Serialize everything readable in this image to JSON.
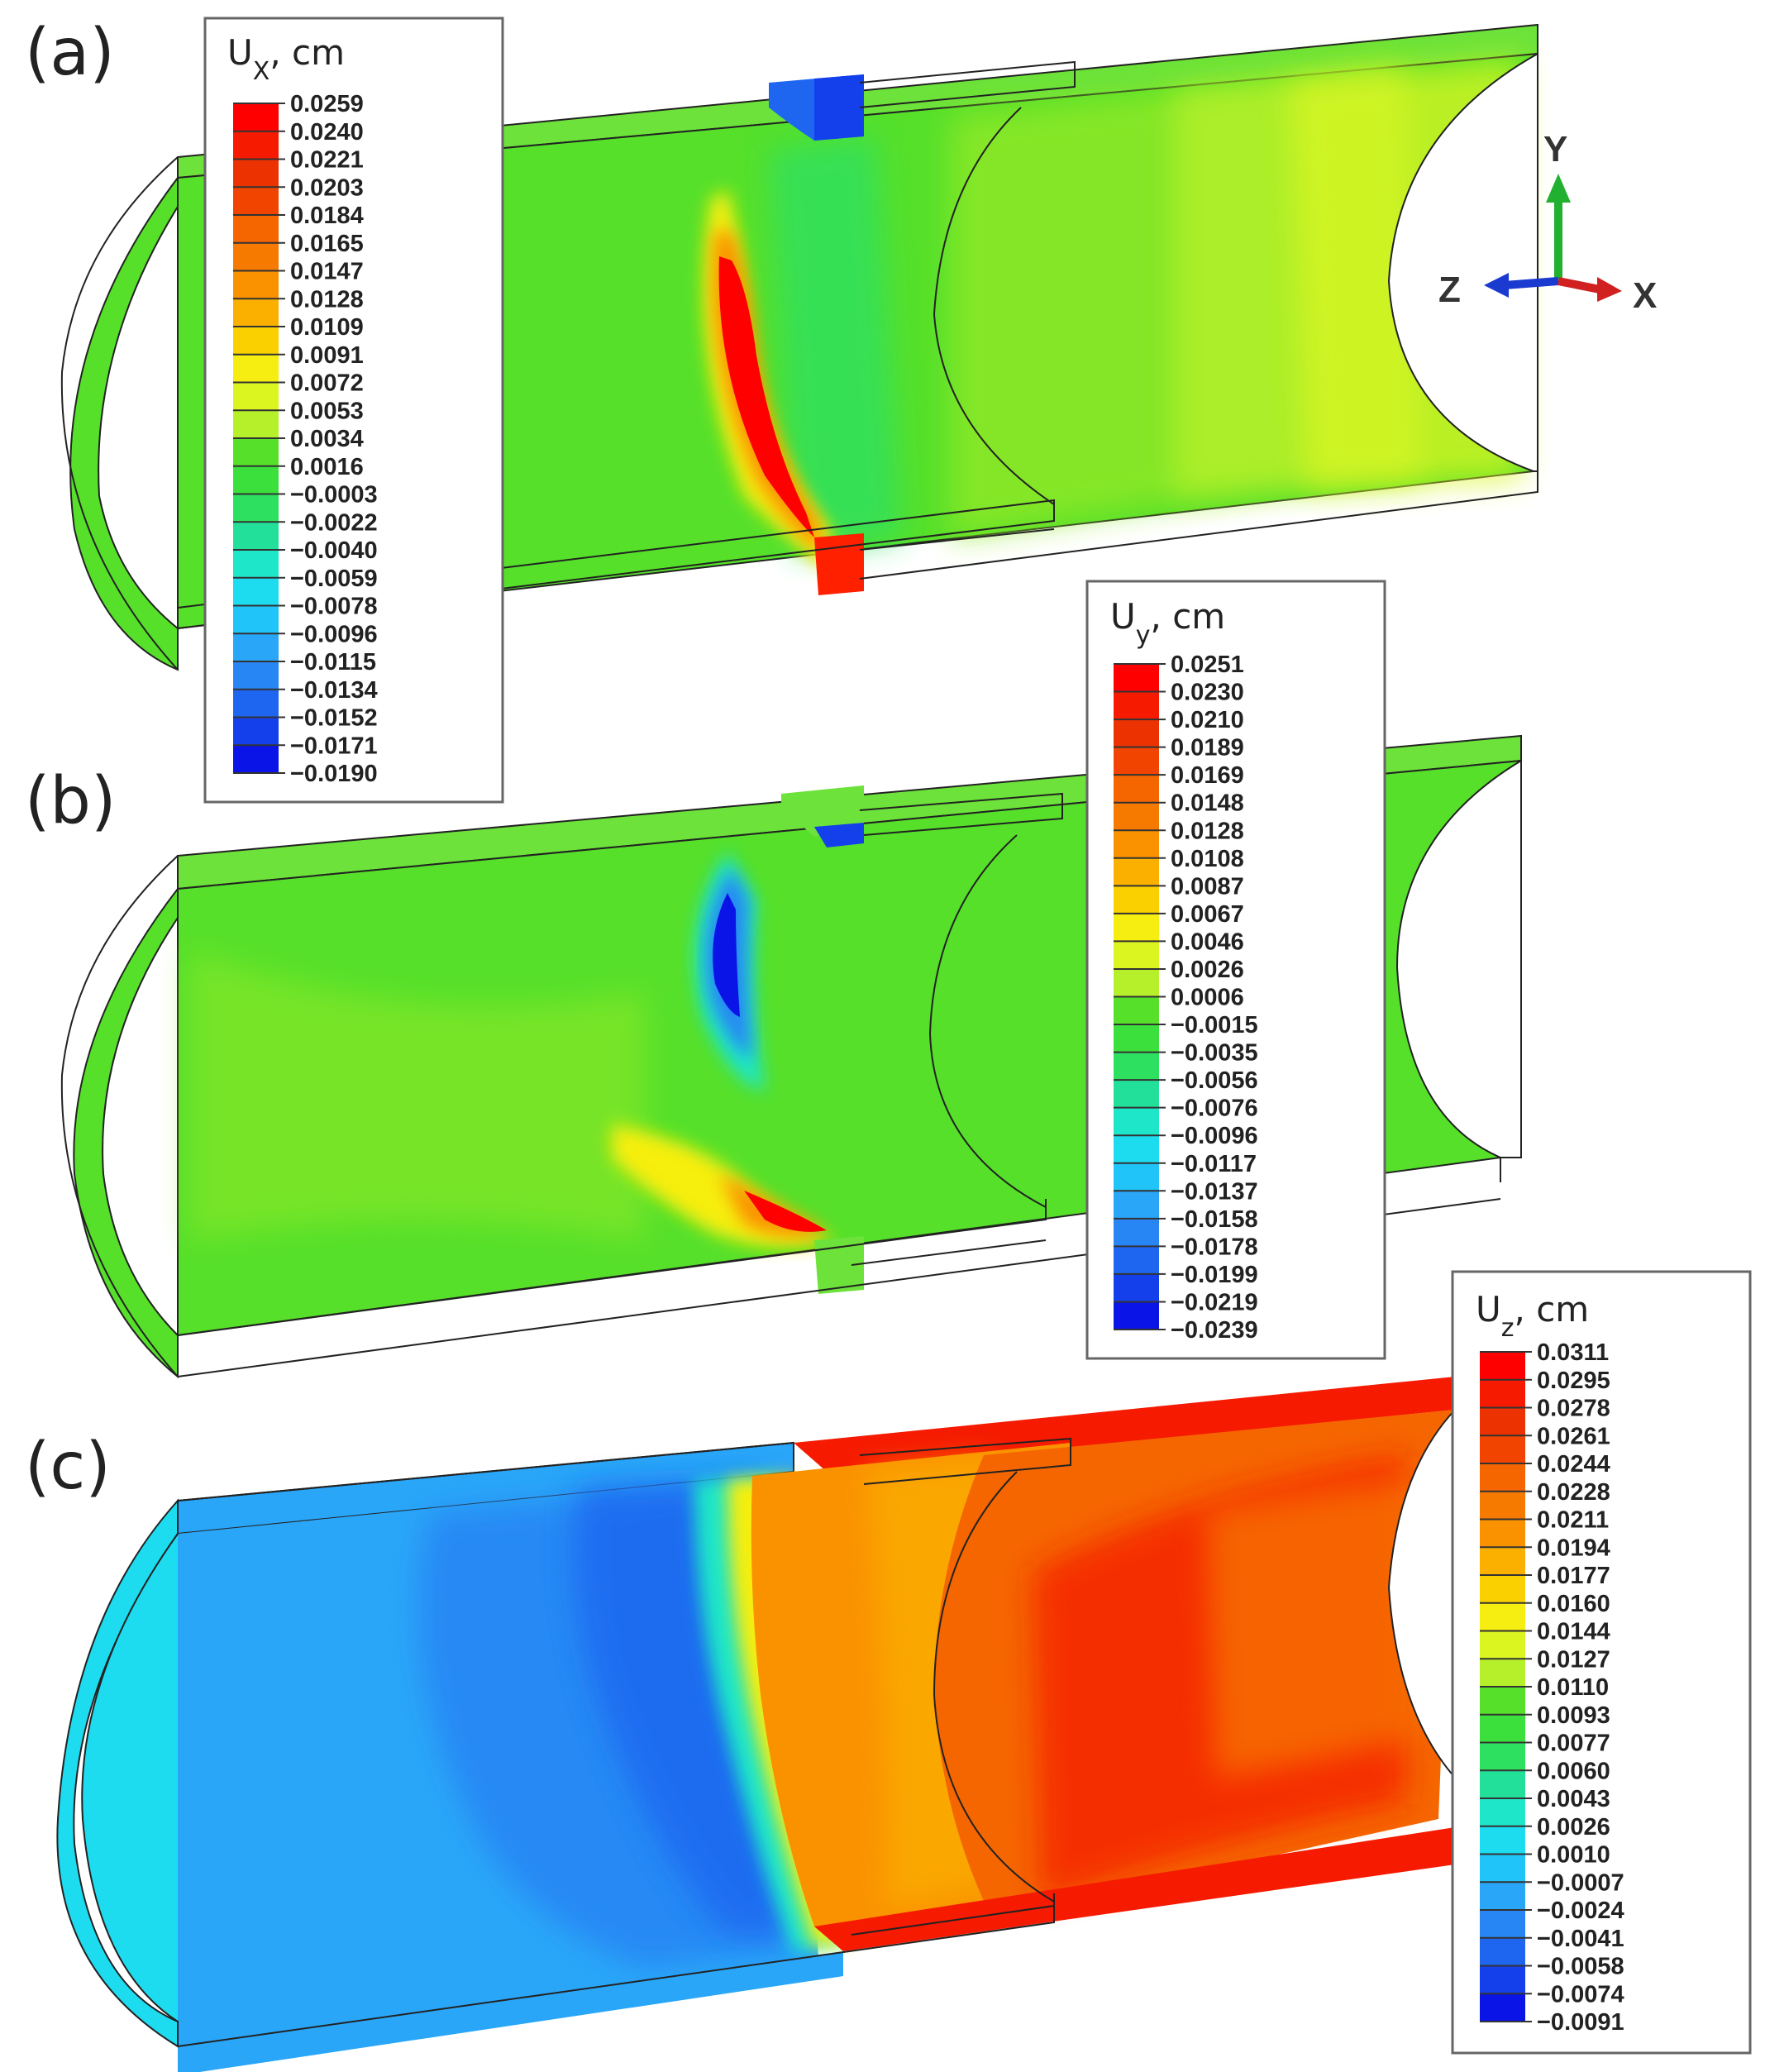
{
  "panels": [
    {
      "label": "(a)"
    },
    {
      "label": "(b)"
    },
    {
      "label": "(c)"
    }
  ],
  "legends": [
    {
      "title_main": "U",
      "title_sub": "X",
      "title_unit": ", cm",
      "values": [
        "0.0259",
        "0.0240",
        "0.0221",
        "0.0203",
        "0.0184",
        "0.0165",
        "0.0147",
        "0.0128",
        "0.0109",
        "0.0091",
        "0.0072",
        "0.0053",
        "0.0034",
        "0.0016",
        "−0.0003",
        "−0.0022",
        "−0.0040",
        "−0.0059",
        "−0.0078",
        "−0.0096",
        "−0.0115",
        "−0.0134",
        "−0.0152",
        "−0.0171",
        "−0.0190"
      ]
    },
    {
      "title_main": "U",
      "title_sub": "y",
      "title_unit": ", cm",
      "values": [
        "0.0251",
        "0.0230",
        "0.0210",
        "0.0189",
        "0.0169",
        "0.0148",
        "0.0128",
        "0.0108",
        "0.0087",
        "0.0067",
        "0.0046",
        "0.0026",
        "0.0006",
        "−0.0015",
        "−0.0035",
        "−0.0056",
        "−0.0076",
        "−0.0096",
        "−0.0117",
        "−0.0137",
        "−0.0158",
        "−0.0178",
        "−0.0199",
        "−0.0219",
        "−0.0239"
      ]
    },
    {
      "title_main": "U",
      "title_sub": "z",
      "title_unit": ", cm",
      "values": [
        "0.0311",
        "0.0295",
        "0.0278",
        "0.0261",
        "0.0244",
        "0.0228",
        "0.0211",
        "0.0194",
        "0.0177",
        "0.0160",
        "0.0144",
        "0.0127",
        "0.0110",
        "0.0093",
        "0.0077",
        "0.0060",
        "0.0043",
        "0.0026",
        "0.0010",
        "−0.0007",
        "−0.0024",
        "−0.0041",
        "−0.0058",
        "−0.0074",
        "−0.0091"
      ]
    }
  ],
  "colormap": [
    "#ff0000",
    "#f51a00",
    "#ec3200",
    "#f04400",
    "#f56600",
    "#f77a00",
    "#fa9200",
    "#fbb000",
    "#fbd000",
    "#f6ee10",
    "#daf520",
    "#b6f02a",
    "#8de828",
    "#56e02a",
    "#3ce03c",
    "#2ee060",
    "#22e09a",
    "#1ee6c8",
    "#1edcf0",
    "#20c4f8",
    "#2aa6f8",
    "#2886f4",
    "#1e66f0",
    "#1440ec",
    "#0a14e6"
  ],
  "triad": {
    "y": "Y",
    "z": "Z",
    "x": "X"
  }
}
